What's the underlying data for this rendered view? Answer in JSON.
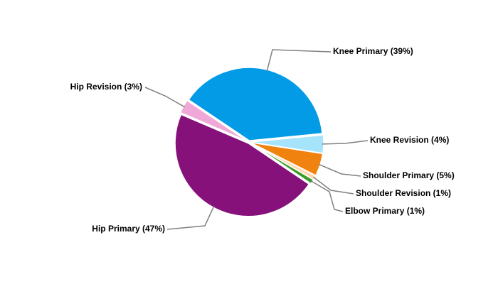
{
  "chart_data": {
    "type": "pie",
    "values": [
      39,
      4,
      5,
      1,
      1,
      47,
      3
    ],
    "value_labels": [
      "Knee Primary (39%)",
      "Knee Revision (4%)",
      "Shoulder Primary (5%)",
      "Shoulder Revision (1%)",
      "Elbow Primary (1%)",
      "Hip Primary (47%)",
      "Hip Revision (3%)"
    ],
    "colors": [
      "#039be5",
      "#a6e4fb",
      "#f0820f",
      "#fcd9b0",
      "#3a9a2a",
      "#86117a",
      "#f0a8d8"
    ]
  }
}
